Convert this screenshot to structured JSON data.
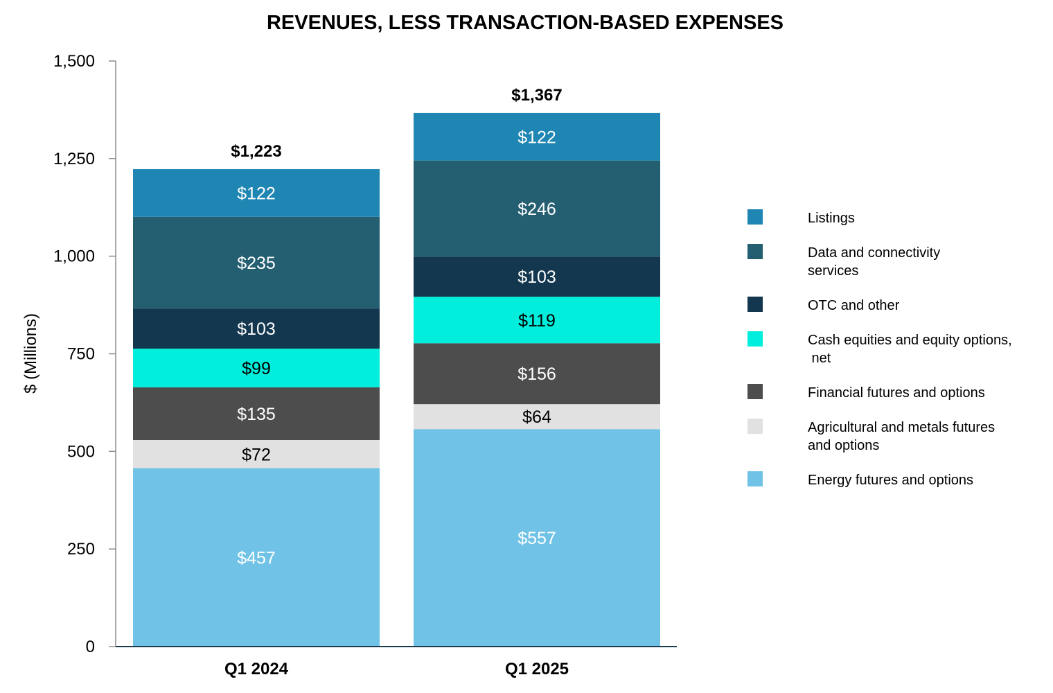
{
  "chart_data": {
    "type": "bar",
    "stacked": true,
    "title": "REVENUES, LESS TRANSACTION-BASED EXPENSES",
    "xlabel": "",
    "ylabel": "$ (Millions)",
    "ylim": [
      0,
      1500
    ],
    "yticks": [
      0,
      250,
      500,
      750,
      1000,
      1250,
      1500
    ],
    "ytick_labels": [
      "0",
      "250",
      "500",
      "750",
      "1,000",
      "1,250",
      "1,500"
    ],
    "categories": [
      "Q1 2024",
      "Q1 2025"
    ],
    "totals": [
      1223,
      1367
    ],
    "total_labels": [
      "$1,223",
      "$1,367"
    ],
    "legend_position": "right",
    "series": [
      {
        "name": "Energy futures and options",
        "legend_lines": [
          "Energy futures and options"
        ],
        "color": "#70c3e6",
        "label_color": "#ffffff",
        "values": [
          457,
          557
        ],
        "labels": [
          "$457",
          "$557"
        ]
      },
      {
        "name": "Agricultural and metals futures and options",
        "legend_lines": [
          "Agricultural and metals futures",
          "and options"
        ],
        "color": "#e1e1e1",
        "label_color": "#000000",
        "values": [
          72,
          64
        ],
        "labels": [
          "$72",
          "$64"
        ]
      },
      {
        "name": "Financial futures and options",
        "legend_lines": [
          "Financial futures and options"
        ],
        "color": "#4d4d4d",
        "label_color": "#ffffff",
        "values": [
          135,
          156
        ],
        "labels": [
          "$135",
          "$156"
        ]
      },
      {
        "name": "Cash equities and equity options, net",
        "legend_lines": [
          "Cash equities and equity options,",
          " net"
        ],
        "color": "#00eedb",
        "label_color": "#000000",
        "values": [
          99,
          119
        ],
        "labels": [
          "$99",
          "$119"
        ]
      },
      {
        "name": "OTC and other",
        "legend_lines": [
          "OTC and other"
        ],
        "color": "#12374e",
        "label_color": "#ffffff",
        "values": [
          103,
          103
        ],
        "labels": [
          "$103",
          "$103"
        ]
      },
      {
        "name": "Data and connectivity services",
        "legend_lines": [
          "Data and connectivity",
          "services"
        ],
        "color": "#235e71",
        "label_color": "#ffffff",
        "values": [
          235,
          246
        ],
        "labels": [
          "$235",
          "$246"
        ]
      },
      {
        "name": "Listings",
        "legend_lines": [
          "Listings"
        ],
        "color": "#1f86b3",
        "label_color": "#ffffff",
        "values": [
          122,
          122
        ],
        "labels": [
          "$122",
          "$122"
        ]
      }
    ]
  }
}
